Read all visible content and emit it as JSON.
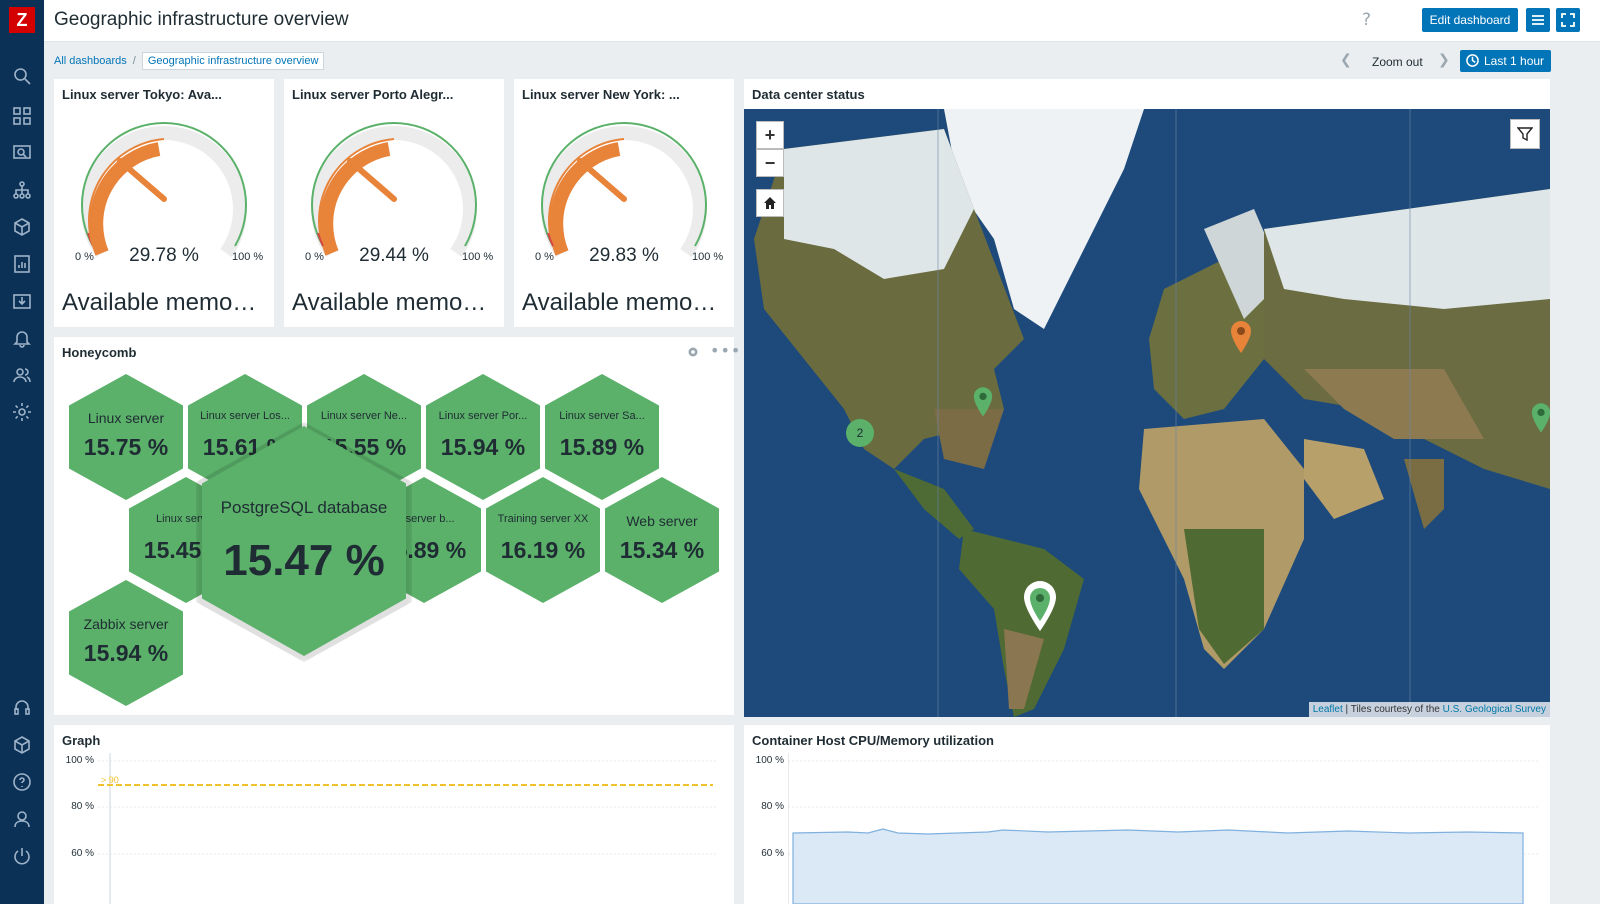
{
  "app": {
    "logo": "Z",
    "page_title": "Geographic infrastructure overview",
    "help": "?"
  },
  "toolbar": {
    "edit_label": "Edit dashboard",
    "zoom_out_label": "Zoom out",
    "time_range_label": "Last 1 hour"
  },
  "breadcrumb": {
    "root": "All dashboards",
    "separator": "/",
    "current": "Geographic infrastructure overview"
  },
  "gauges": [
    {
      "title": "Linux server Tokyo: Ava...",
      "value": "29.78 %",
      "min": "0 %",
      "max": "100 %",
      "description": "Available memo…",
      "level": 29.78
    },
    {
      "title": "Linux server Porto Alegr...",
      "value": "29.44 %",
      "min": "0 %",
      "max": "100 %",
      "description": "Available memo…",
      "level": 29.44
    },
    {
      "title": "Linux server New York: ...",
      "value": "29.83 %",
      "min": "0 %",
      "max": "100 %",
      "description": "Available memo…",
      "level": 29.83
    }
  ],
  "honeycomb": {
    "title": "Honeycomb",
    "cells": [
      {
        "label": "Linux server",
        "value": "15.75 %"
      },
      {
        "label": "Linux server Los...",
        "value": "15.61 %"
      },
      {
        "label": "Linux server Ne...",
        "value": "15.55 %"
      },
      {
        "label": "Linux server Por...",
        "value": "15.94 %"
      },
      {
        "label": "Linux server Sa...",
        "value": "15.89 %"
      },
      {
        "label": "Linux server",
        "value": "15.45 %"
      },
      {
        "label": "at server b...",
        "value": "15.89 %"
      },
      {
        "label": "Training server XX",
        "value": "16.19 %"
      },
      {
        "label": "Web server",
        "value": "15.34 %"
      },
      {
        "label": "Zabbix server",
        "value": "15.94 %"
      }
    ],
    "highlighted": {
      "label": "PostgreSQL database",
      "value": "15.47 %"
    }
  },
  "map": {
    "title": "Data center status",
    "zoom_in": "+",
    "zoom_out": "−",
    "cluster_count": "2",
    "attribution_link": "Leaflet",
    "attribution_text": " | Tiles courtesy of the ",
    "attribution_source": "U.S. Geological Survey"
  },
  "graph": {
    "title": "Graph",
    "y_ticks": [
      "100 %",
      "80 %",
      "60 %"
    ],
    "trigger_label": "> 90"
  },
  "container_graph": {
    "title": "Container Host CPU/Memory utilization",
    "y_ticks": [
      "100 %",
      "80 %",
      "60 %"
    ]
  },
  "colors": {
    "sidebar": "#0b3157",
    "accent": "#0275b8",
    "ok": "#5bb16a",
    "warn": "#e8833a",
    "trigger": "#f2c12e"
  }
}
